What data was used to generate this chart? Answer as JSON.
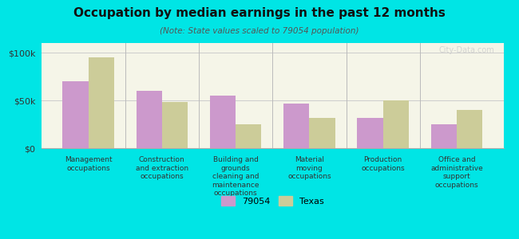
{
  "title": "Occupation by median earnings in the past 12 months",
  "subtitle": "(Note: State values scaled to 79054 population)",
  "categories": [
    "Management\noccupations",
    "Construction\nand extraction\noccupations",
    "Building and\ngrounds\ncleaning and\nmaintenance\noccupations",
    "Material\nmoving\noccupations",
    "Production\noccupations",
    "Office and\nadministrative\nsupport\noccupations"
  ],
  "values_79054": [
    70000,
    60000,
    55000,
    47000,
    32000,
    25000
  ],
  "values_texas": [
    95000,
    48000,
    25000,
    32000,
    50000,
    40000
  ],
  "color_79054": "#cc99cc",
  "color_texas": "#cccc99",
  "ylim": [
    0,
    110000
  ],
  "yticks": [
    0,
    50000,
    100000
  ],
  "ytick_labels": [
    "$0",
    "$50k",
    "$100k"
  ],
  "background_color": "#00e5e5",
  "plot_bg_start": "#f5f5e8",
  "plot_bg_end": "#ffffff",
  "legend_label_79054": "79054",
  "legend_label_texas": "Texas",
  "watermark": "City-Data.com",
  "bar_width": 0.35
}
